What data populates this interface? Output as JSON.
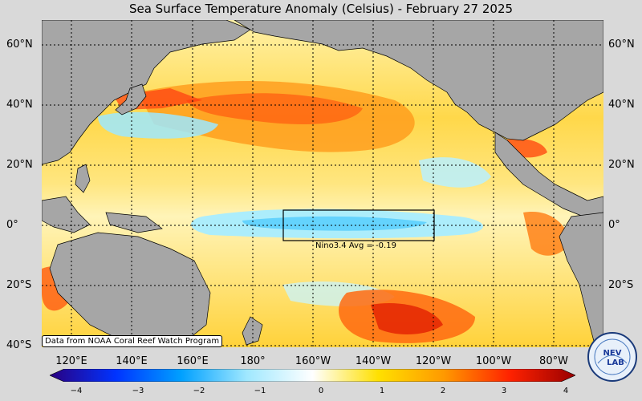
{
  "title": "Sea Surface Temperature Anomaly (Celsius) - February 27 2025",
  "latitude_labels": [
    "60°N",
    "40°N",
    "20°N",
    "0°",
    "20°S",
    "40°S"
  ],
  "longitude_labels": [
    "120°E",
    "140°E",
    "160°E",
    "180°",
    "160°W",
    "140°W",
    "120°W",
    "100°W",
    "80°W"
  ],
  "credit": "Data from NOAA Coral Reef Watch Program",
  "nino_box": {
    "label": "Nino3.4 Avg = -0.19",
    "lon_range": [
      "170°W",
      "120°W"
    ],
    "lat_range": [
      "5°S",
      "5°N"
    ]
  },
  "colorbar": {
    "ticks": [
      "−4",
      "−3",
      "−2",
      "−1",
      "0",
      "1",
      "2",
      "3",
      "4"
    ],
    "colors": [
      "#2a0080",
      "#0033ff",
      "#00a0ff",
      "#a0e8ff",
      "#ffffff",
      "#ffe000",
      "#ff9900",
      "#ff2200",
      "#990000"
    ]
  },
  "logo_text": "NEV LAB",
  "colors": {
    "land": "#a6a6a6",
    "background": "#d9d9d9"
  }
}
